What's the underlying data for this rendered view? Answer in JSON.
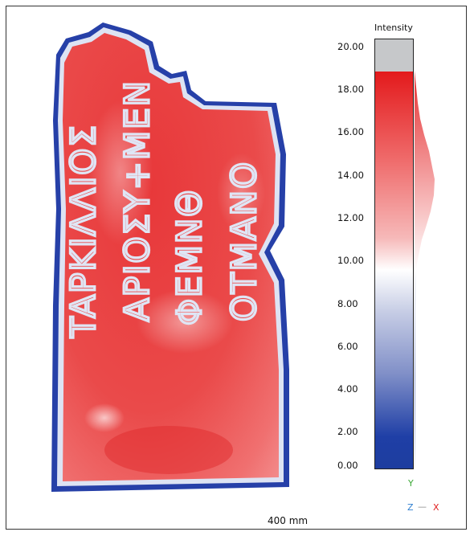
{
  "legend": {
    "title": "Intensity",
    "ticks": [
      "20.00",
      "18.00",
      "16.00",
      "14.00",
      "12.00",
      "10.00",
      "8.00",
      "6.00",
      "4.00",
      "2.00",
      "0.00"
    ],
    "range": [
      0,
      20
    ],
    "data_max": 18.6,
    "colors": {
      "high": "#e31a1c",
      "mid": "#ffffff",
      "low": "#1d3d9f",
      "empty": "#c6c8ca"
    }
  },
  "scan": {
    "inscription_lines": [
      "TAPKIΛΛΙΟΣ",
      "ΑΡΙΟΣΥ+ΜΕΝ",
      "ΦΕΜΝΘ",
      "ΟΤΜΑΝΟ"
    ]
  },
  "scale": {
    "label": "400 mm"
  },
  "axes": {
    "y": {
      "label": "Y",
      "color": "#3aa836"
    },
    "z": {
      "label": "Z",
      "color": "#2f7fd0"
    },
    "x": {
      "label": "X",
      "color": "#e02020"
    }
  }
}
